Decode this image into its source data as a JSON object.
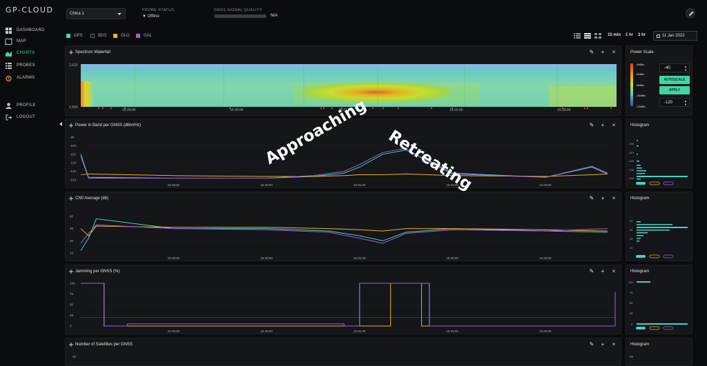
{
  "brand": "GP-CLOUD",
  "nav": [
    {
      "label": "DASHBOARD",
      "icon": "dashboard-icon"
    },
    {
      "label": "MAP",
      "icon": "map-icon"
    },
    {
      "label": "CHARTS",
      "icon": "charts-icon",
      "active": true
    },
    {
      "label": "PROBES",
      "icon": "probes-icon"
    },
    {
      "label": "ALARMS",
      "icon": "alarm-icon"
    },
    {
      "label": "PROFILE",
      "icon": "profile-icon"
    },
    {
      "label": "LOGOUT",
      "icon": "logout-icon"
    }
  ],
  "header": {
    "region": "China 1",
    "probe_status_label": "PROBE STATUS",
    "probe_status_value": "Offline",
    "gnss_label": "GNSS SIGNAL QUALITY",
    "gnss_value": "N/A"
  },
  "legend": [
    {
      "label": "GPS",
      "color": "#3fd6c8",
      "checked": true
    },
    {
      "label": "BDS",
      "color": "#6b6f74",
      "checked": false
    },
    {
      "label": "GLO",
      "color": "#f0b21b",
      "checked": true
    },
    {
      "label": "GAL",
      "color": "#a55fe0",
      "checked": true
    }
  ],
  "time_buttons": [
    "15 min",
    "1 hr",
    "3 hr"
  ],
  "date": "11 Jan 2022",
  "colors": {
    "gps": "#3fd6c8",
    "glo": "#f0b21b",
    "gal": "#a55fe0",
    "threshold": "#e0403c",
    "accent": "#3fd6a4"
  },
  "panels": {
    "waterfall": {
      "title": "Spectrum Waterfall",
      "y_top": "1.610",
      "y_bottom": "1.550"
    },
    "power": {
      "title": "Power in Band per GNSS (dBm/Hz)"
    },
    "cn0": {
      "title": "CN0 Average (db)"
    },
    "jamming": {
      "title": "Jamming per GNSS (%)"
    },
    "satellites": {
      "title": "Number of Satellites per GNSS",
      "y_first": "20"
    }
  },
  "power_scale": {
    "title": "Power Scale",
    "labels": [
      "-45dBm",
      "-60dBm",
      "-85dBm",
      "-100dBm",
      "-120dBm"
    ],
    "max_value": "-40",
    "min_value": "-120",
    "autoscale_label": "AUTOSCALE",
    "apply_label": "APPLY"
  },
  "histogram_title": "Histogram",
  "histograms": {
    "power_ticks": [
      "-100",
      "-110",
      "-120",
      "-130",
      "-140"
    ],
    "cn0_ticks": [
      "40",
      "30",
      "20",
      "10"
    ],
    "jam_ticks": [
      "100",
      "75",
      "50",
      "25",
      "0"
    ],
    "sat_first": "20"
  },
  "x_ticks": [
    "15:29:00",
    "15:30:00",
    "15:31:00",
    "15:32:00",
    "15:33:00"
  ],
  "overlay": {
    "approaching": "Approaching",
    "retreating": "Retreating"
  },
  "chart_data": [
    {
      "type": "line",
      "title": "Power in Band per GNSS (dBm/Hz)",
      "x": [
        "15:28:00",
        "15:28:05",
        "15:29:00",
        "15:30:00",
        "15:30:30",
        "15:30:50",
        "15:31:00",
        "15:31:15",
        "15:31:30",
        "15:31:45",
        "15:32:00",
        "15:33:00",
        "15:33:30",
        "15:33:40"
      ],
      "yticks": [
        "-90",
        "-100",
        "-110",
        "-120",
        "-130",
        "-140"
      ],
      "ylim": [
        -140,
        -90
      ],
      "series": [
        {
          "name": "GPS",
          "values": [
            -110,
            -137,
            -138,
            -138,
            -136,
            -132,
            -125,
            -110,
            -105,
            -118,
            -132,
            -137,
            -125,
            -133
          ]
        },
        {
          "name": "GLO",
          "values": [
            -134,
            -133,
            -135,
            -136,
            -136,
            -135,
            -134,
            -134,
            -133,
            -134,
            -135,
            -136,
            -134,
            -133
          ]
        },
        {
          "name": "GAL",
          "values": [
            -112,
            -138,
            -138,
            -138,
            -135,
            -130,
            -122,
            -108,
            -103,
            -120,
            -133,
            -137,
            -124,
            -132
          ]
        }
      ]
    },
    {
      "type": "line",
      "title": "CN0 Average (db)",
      "x": [
        "15:28:00",
        "15:28:05",
        "15:28:10",
        "15:29:00",
        "15:30:00",
        "15:30:40",
        "15:31:00",
        "15:31:15",
        "15:31:30",
        "15:32:00",
        "15:33:00",
        "15:33:40"
      ],
      "yticks": [
        "40",
        "30",
        "20",
        "10"
      ],
      "ylim": [
        10,
        45
      ],
      "series": [
        {
          "name": "GPS",
          "values": [
            12,
            22,
            38,
            30,
            30,
            28,
            24,
            20,
            27,
            30,
            28,
            27
          ]
        },
        {
          "name": "GLO",
          "values": [
            30,
            24,
            32,
            31,
            31,
            30,
            29,
            28,
            30,
            30,
            29,
            28
          ]
        },
        {
          "name": "GAL",
          "values": [
            18,
            26,
            33,
            30,
            29,
            27,
            22,
            18,
            26,
            29,
            28,
            30
          ]
        }
      ]
    },
    {
      "type": "line",
      "title": "Jamming per GNSS (%)",
      "x": [
        "15:28:00",
        "15:28:15",
        "15:28:30",
        "15:30:50",
        "15:31:00",
        "15:31:20",
        "15:31:40",
        "15:31:45",
        "15:33:40",
        "15:33:45"
      ],
      "yticks": [
        "100",
        "75",
        "50",
        "25",
        "0"
      ],
      "ylim": [
        0,
        100
      ],
      "threshold": 20,
      "series": [
        {
          "name": "GPS",
          "values": [
            100,
            0,
            0,
            0,
            100,
            100,
            100,
            0,
            0,
            0
          ]
        },
        {
          "name": "GLO",
          "values": [
            100,
            0,
            0,
            0,
            0,
            100,
            0,
            0,
            0,
            0
          ]
        },
        {
          "name": "GAL",
          "values": [
            100,
            0,
            5,
            0,
            100,
            100,
            100,
            0,
            0,
            80
          ]
        }
      ]
    }
  ]
}
